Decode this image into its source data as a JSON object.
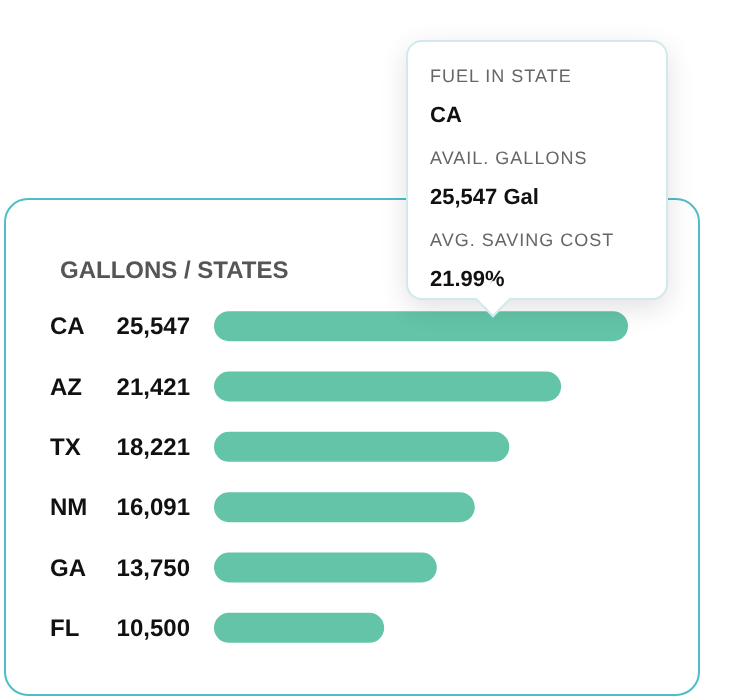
{
  "chart_data": {
    "type": "bar",
    "orientation": "horizontal",
    "title": "GALLONS / STATES",
    "categories": [
      "CA",
      "AZ",
      "TX",
      "NM",
      "GA",
      "FL"
    ],
    "values": [
      25547,
      21421,
      18221,
      16091,
      13750,
      10500
    ],
    "value_labels": [
      "25,547",
      "21,421",
      "18,221",
      "16,091",
      "13,750",
      "10,500"
    ],
    "color": "#63c4a8",
    "annotations": [
      "FUEL IN STATE",
      "CA",
      "AVAIL. GALLONS",
      "25,547 Gal",
      "AVG. SAVING COST",
      "21.99%"
    ]
  }
}
